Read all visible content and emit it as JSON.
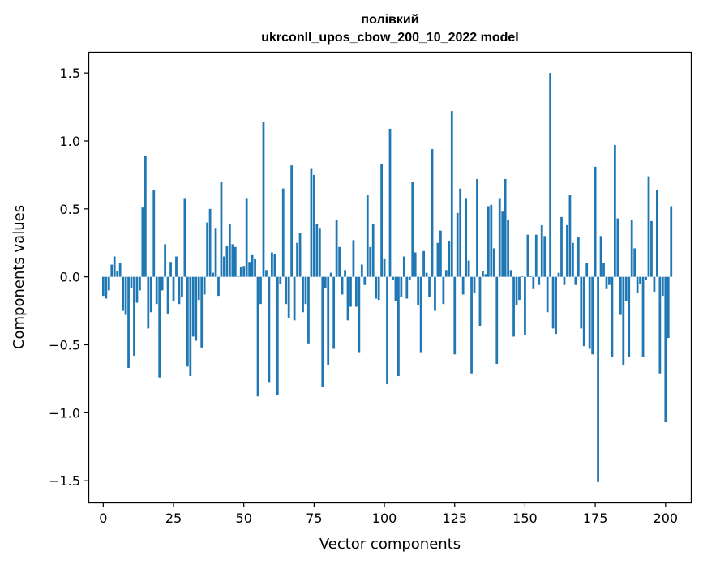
{
  "chart_data": {
    "type": "bar",
    "title_line1": "полівкий",
    "title_line2": "ukrconll_upos_cbow_200_10_2022 model",
    "xlabel": "Vector components",
    "ylabel": "Components values",
    "xlim": [
      -5,
      209
    ],
    "ylim": [
      -1.66,
      1.65
    ],
    "xticks": [
      0,
      25,
      50,
      75,
      100,
      125,
      150,
      175,
      200
    ],
    "yticks": [
      -1.5,
      -1.0,
      -0.5,
      0.0,
      0.5,
      1.0,
      1.5
    ],
    "ytick_labels": [
      "−1.5",
      "−1.0",
      "−0.5",
      "0.0",
      "0.5",
      "1.0",
      "1.5"
    ],
    "bar_color": "#1f77b4",
    "grid": false,
    "values": [
      -0.14,
      -0.16,
      -0.1,
      0.09,
      0.15,
      0.04,
      0.1,
      -0.25,
      -0.28,
      -0.67,
      -0.08,
      -0.58,
      -0.19,
      -0.1,
      0.51,
      0.89,
      -0.38,
      -0.26,
      0.64,
      -0.2,
      -0.74,
      -0.1,
      0.24,
      -0.27,
      0.11,
      -0.18,
      0.15,
      -0.2,
      -0.15,
      0.58,
      -0.66,
      -0.73,
      -0.44,
      -0.47,
      -0.17,
      -0.52,
      -0.13,
      0.4,
      0.5,
      0.03,
      0.36,
      -0.14,
      0.7,
      0.15,
      0.23,
      0.39,
      0.24,
      0.22,
      0.01,
      0.07,
      0.08,
      0.58,
      0.11,
      0.16,
      0.13,
      -0.88,
      -0.2,
      1.14,
      0.05,
      -0.78,
      0.18,
      0.17,
      -0.87,
      -0.05,
      0.65,
      -0.2,
      -0.3,
      0.82,
      -0.32,
      0.25,
      0.32,
      -0.26,
      -0.2,
      -0.49,
      0.8,
      0.75,
      0.39,
      0.36,
      -0.81,
      -0.08,
      -0.65,
      0.03,
      -0.53,
      0.42,
      0.22,
      -0.13,
      0.05,
      -0.32,
      -0.22,
      0.27,
      -0.22,
      -0.56,
      0.09,
      -0.06,
      0.6,
      0.22,
      0.39,
      -0.16,
      -0.17,
      0.83,
      0.13,
      -0.79,
      1.09,
      -0.02,
      -0.18,
      -0.73,
      -0.15,
      0.15,
      -0.16,
      -0.02,
      0.7,
      0.18,
      -0.21,
      -0.56,
      0.19,
      0.03,
      -0.15,
      0.94,
      -0.25,
      0.25,
      0.34,
      -0.2,
      0.05,
      0.26,
      1.22,
      -0.57,
      0.47,
      0.65,
      -0.13,
      0.58,
      0.12,
      -0.71,
      -0.12,
      0.72,
      -0.36,
      0.04,
      0.02,
      0.52,
      0.53,
      0.21,
      -0.64,
      0.58,
      0.48,
      0.72,
      0.42,
      0.05,
      -0.44,
      -0.21,
      -0.17,
      0.01,
      -0.43,
      0.31,
      0.01,
      -0.09,
      0.31,
      -0.06,
      0.38,
      0.3,
      -0.26,
      1.5,
      -0.38,
      -0.42,
      0.03,
      0.44,
      -0.06,
      0.38,
      0.6,
      0.25,
      -0.06,
      0.29,
      -0.38,
      -0.51,
      0.1,
      -0.53,
      -0.57,
      0.81,
      -1.51,
      0.3,
      0.1,
      -0.09,
      -0.06,
      -0.59,
      0.97,
      0.43,
      -0.28,
      -0.65,
      -0.18,
      -0.59,
      0.42,
      0.21,
      -0.12,
      -0.05,
      -0.59,
      -0.02,
      0.74,
      0.41,
      -0.11,
      0.64,
      -0.71,
      -0.14,
      -1.07,
      -0.45,
      0.52
    ]
  }
}
